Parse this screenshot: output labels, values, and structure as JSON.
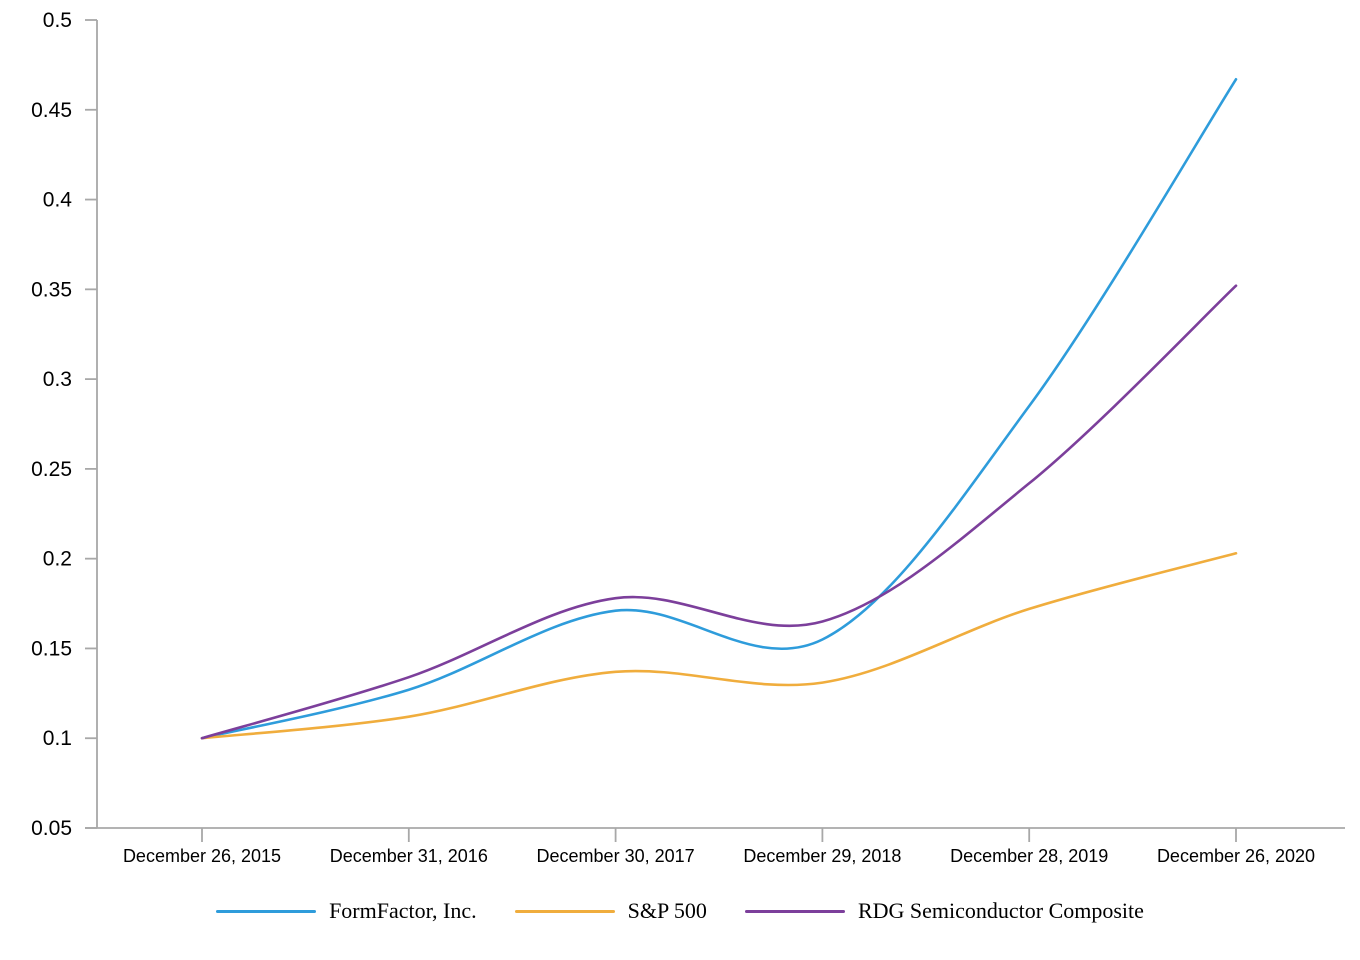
{
  "chart_data": {
    "type": "line",
    "title": "",
    "line_style": "smooth",
    "grid": false,
    "legend_position": "bottom",
    "axis_color": "#a8a8a8",
    "label_color": "#000000",
    "ylim": [
      0.05,
      0.5
    ],
    "yticks": [
      0.5,
      0.45,
      0.4,
      0.35,
      0.3,
      0.25,
      0.2,
      0.15,
      0.1,
      0.05
    ],
    "ytick_labels": [
      "0.5",
      "0.45",
      "0.4",
      "0.35",
      "0.3",
      "0.25",
      "0.2",
      "0.15",
      "0.1",
      "0.05"
    ],
    "x_labels": [
      "December 26, 2015",
      "December 31, 2016",
      "December 30, 2017",
      "December 29, 2018",
      "December 28, 2019",
      "December 26, 2020"
    ],
    "series": [
      {
        "name": "FormFactor, Inc.",
        "color": "#2e9cdb",
        "values": [
          0.1,
          0.127,
          0.171,
          0.155,
          0.285,
          0.467
        ]
      },
      {
        "name": "S&P 500",
        "color": "#f0ad3d",
        "values": [
          0.1,
          0.112,
          0.137,
          0.131,
          0.172,
          0.203
        ]
      },
      {
        "name": "RDG Semiconductor Composite",
        "color": "#7c3f9b",
        "values": [
          0.1,
          0.134,
          0.178,
          0.165,
          0.242,
          0.352
        ]
      }
    ]
  }
}
